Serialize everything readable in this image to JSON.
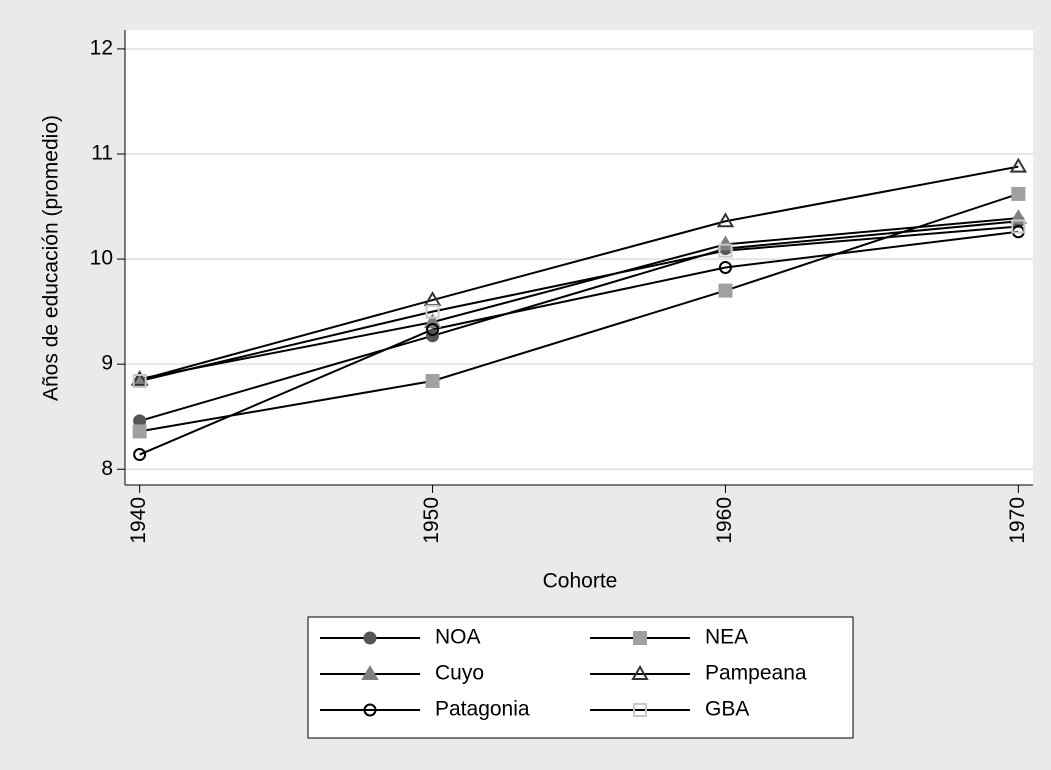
{
  "chart_data": {
    "type": "line",
    "x_label": "Cohorte",
    "y_label": "Años de educación (promedio)",
    "x": [
      1940,
      1950,
      1960,
      1970
    ],
    "xlim": [
      1939.5,
      1970.5
    ],
    "xticks": [
      1940,
      1950,
      1960,
      1970
    ],
    "ylim": [
      7.85,
      12.18
    ],
    "yticks": [
      8,
      9,
      10,
      11,
      12
    ],
    "grid": true,
    "legend": "bottom",
    "line_color": "#000000",
    "series": [
      {
        "name": "NOA",
        "color": "#555555",
        "marker": "circle",
        "hollow": false,
        "values": [
          8.46,
          9.27,
          10.1,
          10.36
        ]
      },
      {
        "name": "NEA",
        "color": "#a0a0a0",
        "marker": "square",
        "hollow": false,
        "values": [
          8.36,
          8.84,
          9.7,
          10.62
        ]
      },
      {
        "name": "Cuyo",
        "color": "#808080",
        "marker": "triangle",
        "hollow": false,
        "values": [
          8.86,
          9.4,
          10.14,
          10.39
        ]
      },
      {
        "name": "Pampeana",
        "color": "#333333",
        "marker": "triangle",
        "hollow": true,
        "values": [
          8.85,
          9.61,
          10.36,
          10.88
        ]
      },
      {
        "name": "Patagonia",
        "color": "#000000",
        "marker": "circle",
        "hollow": true,
        "values": [
          8.14,
          9.33,
          9.92,
          10.26
        ]
      },
      {
        "name": "GBA",
        "color": "#c8c8c8",
        "marker": "square",
        "hollow": true,
        "values": [
          8.84,
          9.5,
          10.08,
          10.31
        ]
      }
    ]
  }
}
